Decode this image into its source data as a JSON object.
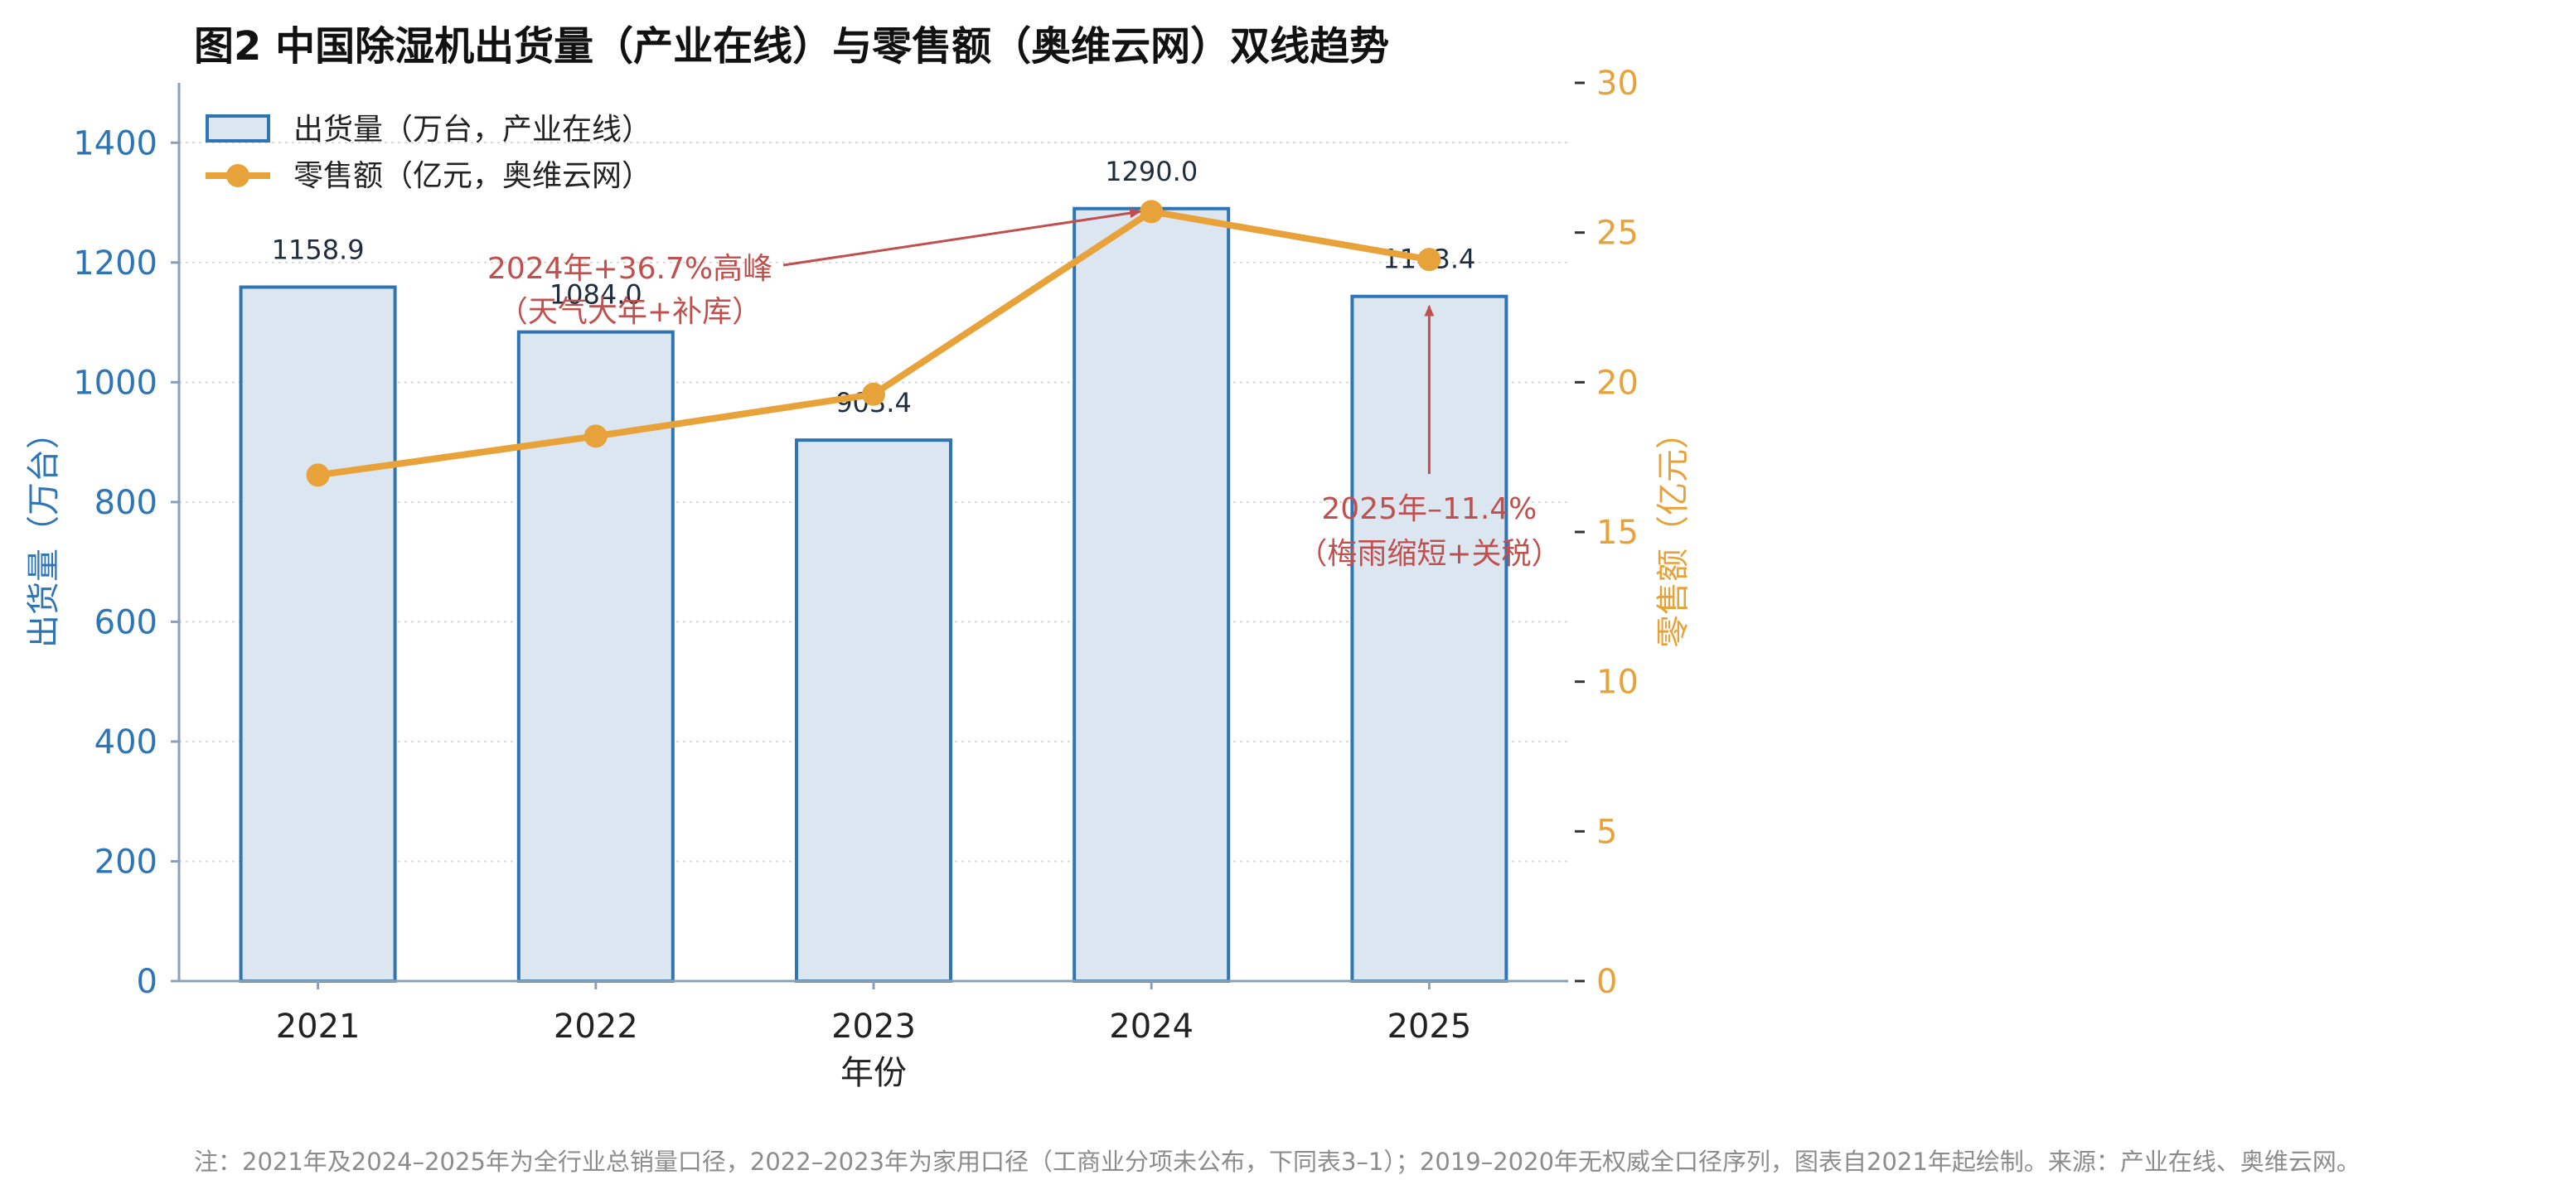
{
  "figure": {
    "title": "图2  中国除湿机出货量（产业在线）与零售额（奥维云网）双线趋势",
    "note": "注：2021年及2024–2025年为全行业总销量口径，2022–2023年为家用口径（工商业分项未公布，下同表3–1）；2019–2020年无权威全口径序列，图表自2021年起绘制。来源：产业在线、奥维云网。"
  },
  "colors": {
    "bar_fill": "#dce6f1",
    "bar_edge": "#2e75b6",
    "line": "#e8a23a",
    "left_axis": "#2e75b6",
    "right_axis": "#e8a23a",
    "annotation": "#c0504d",
    "grid": "#d9d9d9",
    "spine": "#8aa0b8",
    "note": "#8c8c8c"
  },
  "chart_data": {
    "type": "bar+line",
    "title": "图2  中国除湿机出货量（产业在线）与零售额（奥维云网）双线趋势",
    "xlabel": "年份",
    "categories": [
      "2021",
      "2022",
      "2023",
      "2024",
      "2025"
    ],
    "grid": "horizontal dotted",
    "legend_position": "top-left",
    "left_axis": {
      "label": "出货量（万台）",
      "ylim": [
        0,
        1500
      ],
      "ticks": [
        0,
        200,
        400,
        600,
        800,
        1000,
        1200,
        1400
      ]
    },
    "right_axis": {
      "label": "零售额（亿元）",
      "ylim": [
        0,
        30
      ],
      "ticks": [
        0,
        5,
        10,
        15,
        20,
        25,
        30
      ]
    },
    "series": [
      {
        "name": "出货量（万台，产业在线）",
        "type": "bar",
        "axis": "left",
        "values": [
          1158.9,
          1084.0,
          903.4,
          1290.0,
          1143.4
        ],
        "labels": [
          "1158.9",
          "1084.0",
          "903.4",
          "1290.0",
          "1143.4"
        ]
      },
      {
        "name": "零售额（亿元，奥维云网）",
        "type": "line",
        "axis": "right",
        "values": [
          16.9,
          18.2,
          19.6,
          25.7,
          24.1
        ]
      }
    ],
    "annotations": [
      {
        "line1": "2024年+36.7%高峰",
        "line2": "（天气大年+补库）",
        "target_category": "2024"
      },
      {
        "line1": "2025年–11.4%",
        "line2": "（梅雨缩短+关税）",
        "target_category": "2025"
      }
    ]
  }
}
